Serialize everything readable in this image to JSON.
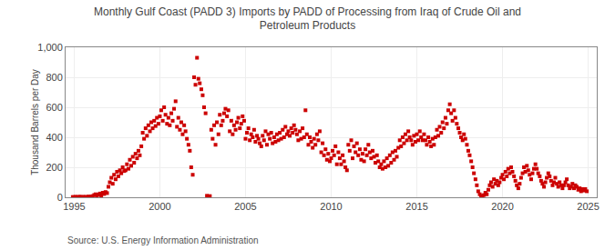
{
  "chart_data": {
    "type": "scatter",
    "title": "Monthly Gulf Coast (PADD 3) Imports by PADD of Processing from Iraq of Crude Oil and\nPetroleum Products",
    "ylabel": "Thousand Barrels per Day",
    "annotations": [
      "Source: U.S. Energy Information Administration"
    ],
    "color": "#cc0000",
    "marker": "square",
    "grid": true,
    "xlim": [
      1994.5,
      2025.5
    ],
    "ylim": [
      0,
      1000
    ],
    "xticks": [
      1995,
      2000,
      2005,
      2010,
      2015,
      2020,
      2025
    ],
    "yticks": [
      0,
      200,
      400,
      600,
      800,
      {
        "value": 1000,
        "label": "1,000"
      }
    ],
    "x": [
      1994.92,
      1995.0,
      1995.08,
      1995.17,
      1995.25,
      1995.33,
      1995.42,
      1995.5,
      1995.58,
      1995.67,
      1995.75,
      1995.83,
      1995.92,
      1996.0,
      1996.08,
      1996.17,
      1996.25,
      1996.33,
      1996.42,
      1996.5,
      1996.58,
      1996.67,
      1996.75,
      1996.83,
      1996.92,
      1997.0,
      1997.08,
      1997.17,
      1997.25,
      1997.33,
      1997.42,
      1997.5,
      1997.58,
      1997.67,
      1997.75,
      1997.83,
      1997.92,
      1998.0,
      1998.08,
      1998.17,
      1998.25,
      1998.33,
      1998.42,
      1998.5,
      1998.58,
      1998.67,
      1998.75,
      1998.83,
      1998.92,
      1999.0,
      1999.08,
      1999.17,
      1999.25,
      1999.33,
      1999.42,
      1999.5,
      1999.58,
      1999.67,
      1999.75,
      1999.83,
      1999.92,
      2000.0,
      2000.08,
      2000.17,
      2000.25,
      2000.33,
      2000.42,
      2000.5,
      2000.58,
      2000.67,
      2000.75,
      2000.83,
      2000.92,
      2001.0,
      2001.08,
      2001.17,
      2001.25,
      2001.33,
      2001.42,
      2001.5,
      2001.58,
      2001.67,
      2001.75,
      2001.83,
      2001.92,
      2002.0,
      2002.08,
      2002.17,
      2002.25,
      2002.33,
      2002.42,
      2002.5,
      2002.58,
      2002.67,
      2002.75,
      2002.83,
      2002.92,
      2003.0,
      2003.08,
      2003.17,
      2003.25,
      2003.33,
      2003.42,
      2003.5,
      2003.58,
      2003.67,
      2003.75,
      2003.83,
      2003.92,
      2004.0,
      2004.08,
      2004.17,
      2004.25,
      2004.33,
      2004.42,
      2004.5,
      2004.58,
      2004.67,
      2004.75,
      2004.83,
      2004.92,
      2005.0,
      2005.08,
      2005.17,
      2005.25,
      2005.33,
      2005.42,
      2005.5,
      2005.58,
      2005.67,
      2005.75,
      2005.83,
      2005.92,
      2006.0,
      2006.08,
      2006.17,
      2006.25,
      2006.33,
      2006.42,
      2006.5,
      2006.58,
      2006.67,
      2006.75,
      2006.83,
      2006.92,
      2007.0,
      2007.08,
      2007.17,
      2007.25,
      2007.33,
      2007.42,
      2007.5,
      2007.58,
      2007.67,
      2007.75,
      2007.83,
      2007.92,
      2008.0,
      2008.08,
      2008.17,
      2008.25,
      2008.33,
      2008.42,
      2008.5,
      2008.58,
      2008.67,
      2008.75,
      2008.83,
      2008.92,
      2009.0,
      2009.08,
      2009.17,
      2009.25,
      2009.33,
      2009.42,
      2009.5,
      2009.58,
      2009.67,
      2009.75,
      2009.83,
      2009.92,
      2010.0,
      2010.08,
      2010.17,
      2010.25,
      2010.33,
      2010.42,
      2010.5,
      2010.58,
      2010.67,
      2010.75,
      2010.83,
      2010.92,
      2011.0,
      2011.08,
      2011.17,
      2011.25,
      2011.33,
      2011.42,
      2011.5,
      2011.58,
      2011.67,
      2011.75,
      2011.83,
      2011.92,
      2012.0,
      2012.08,
      2012.17,
      2012.25,
      2012.33,
      2012.42,
      2012.5,
      2012.58,
      2012.67,
      2012.75,
      2012.83,
      2012.92,
      2013.0,
      2013.08,
      2013.17,
      2013.25,
      2013.33,
      2013.42,
      2013.5,
      2013.58,
      2013.67,
      2013.75,
      2013.83,
      2013.92,
      2014.0,
      2014.08,
      2014.17,
      2014.25,
      2014.33,
      2014.42,
      2014.5,
      2014.58,
      2014.67,
      2014.75,
      2014.83,
      2014.92,
      2015.0,
      2015.08,
      2015.17,
      2015.25,
      2015.33,
      2015.42,
      2015.5,
      2015.58,
      2015.67,
      2015.75,
      2015.83,
      2015.92,
      2016.0,
      2016.08,
      2016.17,
      2016.25,
      2016.33,
      2016.42,
      2016.5,
      2016.58,
      2016.67,
      2016.75,
      2016.83,
      2016.92,
      2017.0,
      2017.08,
      2017.17,
      2017.25,
      2017.33,
      2017.42,
      2017.5,
      2017.58,
      2017.67,
      2017.75,
      2017.83,
      2017.92,
      2018.0,
      2018.08,
      2018.17,
      2018.25,
      2018.33,
      2018.42,
      2018.5,
      2018.58,
      2018.67,
      2018.75,
      2018.83,
      2018.92,
      2019.0,
      2019.08,
      2019.17,
      2019.25,
      2019.33,
      2019.42,
      2019.5,
      2019.58,
      2019.67,
      2019.75,
      2019.83,
      2019.92,
      2020.0,
      2020.08,
      2020.17,
      2020.25,
      2020.33,
      2020.42,
      2020.5,
      2020.58,
      2020.67,
      2020.75,
      2020.83,
      2020.92,
      2021.0,
      2021.08,
      2021.17,
      2021.25,
      2021.33,
      2021.42,
      2021.5,
      2021.58,
      2021.67,
      2021.75,
      2021.83,
      2021.92,
      2022.0,
      2022.08,
      2022.17,
      2022.25,
      2022.33,
      2022.42,
      2022.5,
      2022.58,
      2022.67,
      2022.75,
      2022.83,
      2022.92,
      2023.0,
      2023.08,
      2023.17,
      2023.25,
      2023.33,
      2023.42,
      2023.5,
      2023.58,
      2023.67,
      2023.75,
      2023.83,
      2023.92,
      2024.0,
      2024.08,
      2024.17,
      2024.25,
      2024.33,
      2024.42,
      2024.5,
      2024.58,
      2024.67,
      2024.75,
      2024.83,
      2024.92
    ],
    "values": [
      2,
      1,
      3,
      2,
      1,
      4,
      2,
      1,
      3,
      2,
      1,
      5,
      3,
      5,
      8,
      15,
      20,
      10,
      18,
      25,
      12,
      30,
      22,
      35,
      28,
      70,
      100,
      130,
      90,
      150,
      120,
      170,
      140,
      180,
      160,
      200,
      175,
      180,
      220,
      190,
      250,
      210,
      270,
      230,
      290,
      260,
      310,
      280,
      340,
      430,
      390,
      460,
      410,
      480,
      440,
      500,
      460,
      510,
      475,
      530,
      490,
      540,
      580,
      510,
      600,
      550,
      490,
      530,
      480,
      560,
      510,
      590,
      640,
      470,
      530,
      450,
      500,
      420,
      480,
      440,
      390,
      350,
      310,
      200,
      150,
      800,
      750,
      930,
      790,
      760,
      720,
      680,
      600,
      560,
      10,
      5,
      8,
      450,
      390,
      480,
      350,
      500,
      420,
      550,
      480,
      510,
      560,
      590,
      540,
      580,
      440,
      510,
      420,
      480,
      450,
      500,
      530,
      460,
      490,
      540,
      510,
      390,
      430,
      460,
      380,
      420,
      400,
      450,
      370,
      410,
      390,
      360,
      340,
      410,
      380,
      440,
      350,
      420,
      390,
      430,
      360,
      400,
      370,
      420,
      380,
      430,
      390,
      450,
      400,
      470,
      420,
      440,
      410,
      460,
      430,
      480,
      450,
      420,
      380,
      440,
      390,
      460,
      400,
      580,
      420,
      350,
      400,
      370,
      330,
      390,
      350,
      420,
      380,
      440,
      300,
      360,
      280,
      320,
      250,
      290,
      240,
      260,
      310,
      280,
      340,
      220,
      300,
      260,
      220,
      280,
      240,
      200,
      180,
      350,
      310,
      380,
      260,
      340,
      300,
      360,
      280,
      320,
      250,
      290,
      240,
      320,
      280,
      350,
      300,
      260,
      310,
      270,
      230,
      280,
      240,
      200,
      220,
      190,
      240,
      200,
      260,
      210,
      280,
      230,
      300,
      250,
      310,
      270,
      330,
      380,
      340,
      400,
      360,
      420,
      380,
      440,
      400,
      380,
      350,
      410,
      370,
      420,
      380,
      440,
      400,
      380,
      420,
      380,
      350,
      400,
      370,
      340,
      390,
      350,
      400,
      450,
      410,
      470,
      430,
      500,
      460,
      530,
      490,
      580,
      620,
      560,
      510,
      580,
      530,
      490,
      460,
      430,
      400,
      380,
      420,
      390,
      350,
      310,
      280,
      240,
      200,
      160,
      120,
      80,
      40,
      20,
      10,
      5,
      15,
      30,
      20,
      50,
      80,
      100,
      70,
      120,
      90,
      110,
      80,
      100,
      130,
      150,
      120,
      170,
      140,
      190,
      160,
      200,
      170,
      140,
      110,
      80,
      60,
      90,
      130,
      160,
      200,
      170,
      210,
      180,
      150,
      120,
      160,
      190,
      220,
      190,
      160,
      140,
      110,
      90,
      70,
      100,
      130,
      160,
      140,
      110,
      80,
      100,
      130,
      90,
      70,
      100,
      80,
      60,
      80,
      100,
      120,
      80,
      60,
      70,
      90,
      60,
      80,
      70,
      50,
      60,
      40,
      55,
      45,
      55,
      40
    ]
  }
}
